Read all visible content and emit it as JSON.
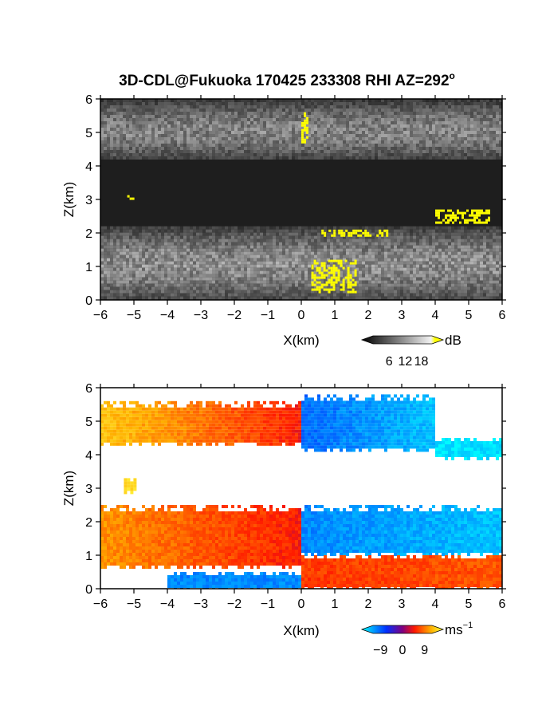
{
  "figure": {
    "title": "3D-CDL@Fukuoka 170425 233308 RHI AZ=292",
    "title_suffix": "o"
  },
  "chart_data": [
    {
      "type": "heatmap",
      "name": "snr",
      "xlabel": "X(km)",
      "ylabel": "Z(km)",
      "xlim": [
        -6,
        6
      ],
      "ylim": [
        0,
        6
      ],
      "xticks": [
        -6,
        -5,
        -4,
        -3,
        -2,
        -1,
        0,
        1,
        2,
        3,
        4,
        5,
        6
      ],
      "yticks": [
        0,
        1,
        2,
        3,
        4,
        5,
        6
      ],
      "colormap": "gray-to-yellow",
      "colorbar": {
        "unit": "dB",
        "ticks": [
          6,
          12,
          18
        ],
        "range": [
          0,
          22
        ]
      },
      "layers": [
        {
          "x": [
            -6,
            6
          ],
          "z": [
            4.2,
            6.0
          ],
          "value": 12
        },
        {
          "x": [
            -6,
            6
          ],
          "z": [
            0.0,
            2.2
          ],
          "value": 13
        }
      ],
      "features": [
        {
          "x": [
            -5.2,
            -5.0
          ],
          "z": [
            3.0,
            3.2
          ],
          "value": 20
        },
        {
          "x": [
            0.0,
            0.2
          ],
          "z": [
            4.7,
            5.6
          ],
          "value": 20
        },
        {
          "x": [
            0.6,
            2.6
          ],
          "z": [
            1.9,
            2.1
          ],
          "value": 20
        },
        {
          "x": [
            4.0,
            5.6
          ],
          "z": [
            2.3,
            2.7
          ],
          "value": 20
        },
        {
          "x": [
            0.3,
            1.6
          ],
          "z": [
            0.2,
            1.2
          ],
          "value": 19
        }
      ]
    },
    {
      "type": "heatmap",
      "name": "doppler",
      "xlabel": "X(km)",
      "ylabel": "Z(km)",
      "xlim": [
        -6,
        6
      ],
      "ylim": [
        0,
        6
      ],
      "xticks": [
        -6,
        -5,
        -4,
        -3,
        -2,
        -1,
        0,
        1,
        2,
        3,
        4,
        5,
        6
      ],
      "yticks": [
        0,
        1,
        2,
        3,
        4,
        5,
        6
      ],
      "colormap": "cyan-blue-red-yellow",
      "colorbar": {
        "unit": "ms",
        "unit_sup": "−1",
        "ticks": [
          "−9",
          "0",
          "9"
        ],
        "range": [
          -12,
          12
        ]
      },
      "layers": [
        {
          "x": [
            -6.0,
            0.0
          ],
          "z": [
            4.3,
            5.6
          ],
          "velocity": [
            9,
            3
          ]
        },
        {
          "x": [
            0.0,
            4.0
          ],
          "z": [
            4.1,
            5.8
          ],
          "velocity": [
            -7,
            -10
          ]
        },
        {
          "x": [
            4.0,
            6.0
          ],
          "z": [
            3.9,
            4.5
          ],
          "velocity": [
            -11,
            -11
          ]
        },
        {
          "x": [
            -5.3,
            -5.0
          ],
          "z": [
            2.9,
            3.3
          ],
          "velocity": [
            10,
            10
          ]
        },
        {
          "x": [
            -6.0,
            0.0
          ],
          "z": [
            0.6,
            2.5
          ],
          "velocity": [
            7,
            3
          ]
        },
        {
          "x": [
            0.0,
            6.0
          ],
          "z": [
            1.0,
            2.5
          ],
          "velocity": [
            -8,
            -10
          ]
        },
        {
          "x": [
            0.0,
            6.0
          ],
          "z": [
            0.0,
            1.0
          ],
          "velocity": [
            4,
            5
          ]
        },
        {
          "x": [
            -4.0,
            0.0
          ],
          "z": [
            0.0,
            0.5
          ],
          "velocity": [
            -8,
            -8
          ]
        }
      ]
    }
  ]
}
